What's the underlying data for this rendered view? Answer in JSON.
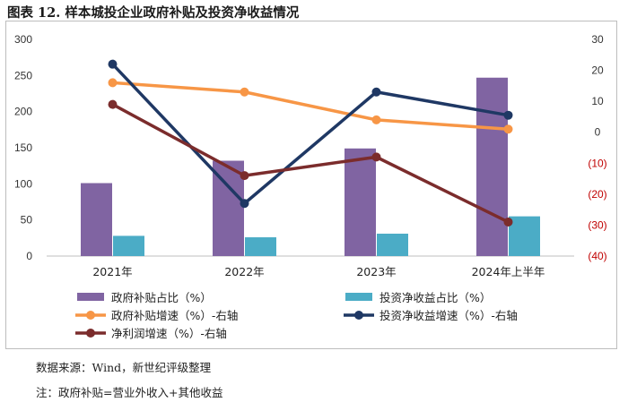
{
  "figure_title": "图表 12. 样本城投企业政府补贴及投资净收益情况",
  "source_note": "数据来源：Wind，新世纪评级整理",
  "footnote": "注：政府补贴=营业外收入+其他收益",
  "colors": {
    "subsidy_share": "#8064a2",
    "invest_share": "#4bacc6",
    "subsidy_growth": "#f79646",
    "invest_growth": "#1f3864",
    "profit_growth": "#7b2c2c",
    "negative_tick": "#c00000"
  },
  "chart_data": {
    "type": "bar",
    "categories": [
      "2021年",
      "2022年",
      "2023年",
      "2024年上半年"
    ],
    "left_axis": {
      "min": 0,
      "max": 300,
      "ticks": [
        "0",
        "50",
        "100",
        "150",
        "200",
        "250",
        "300"
      ]
    },
    "right_axis": {
      "min": -40,
      "max": 30,
      "ticks": [
        "(40)",
        "(30)",
        "(20)",
        "(10)",
        "0",
        "10",
        "20",
        "30"
      ]
    },
    "series": [
      {
        "name": "政府补贴占比（%）",
        "type": "bar",
        "axis": "left",
        "values": [
          101,
          132,
          149,
          247
        ]
      },
      {
        "name": "投资净收益占比（%）",
        "type": "bar",
        "axis": "left",
        "values": [
          28,
          26,
          31,
          55
        ]
      },
      {
        "name": "政府补贴增速（%）-右轴",
        "type": "line",
        "axis": "right",
        "values": [
          16,
          13,
          4,
          1
        ]
      },
      {
        "name": "投资净收益增速（%）-右轴",
        "type": "line",
        "axis": "right",
        "values": [
          22,
          -23,
          13,
          5.5
        ]
      },
      {
        "name": "净利润增速（%）-右轴",
        "type": "line",
        "axis": "right",
        "values": [
          9,
          -14,
          -8,
          -29
        ]
      }
    ],
    "legend": "bottom"
  }
}
